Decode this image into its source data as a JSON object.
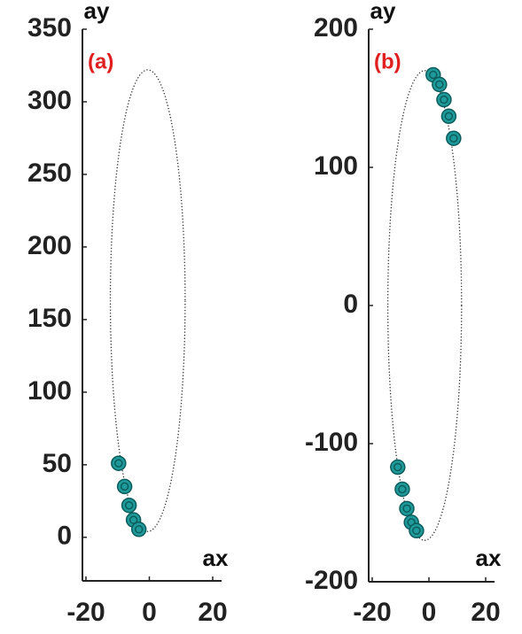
{
  "chart_data": [
    {
      "type": "scatter",
      "title": "(a)",
      "x_label": "ax",
      "y_label": "ay",
      "xlim": [
        -20,
        20
      ],
      "xticks": [
        -20,
        0,
        20
      ],
      "ylim": [
        -30,
        350
      ],
      "yticks": [
        0,
        50,
        100,
        150,
        200,
        250,
        300,
        350
      ],
      "ellipse": {
        "cx": -0.5,
        "cy": 163,
        "rx": 11.8,
        "ry": 159
      },
      "series": [
        {
          "color": "#1f9a9a",
          "x": [
            -9.7,
            -7.8,
            -6.4,
            -5,
            -3.3
          ],
          "values": [
            51,
            35,
            22,
            12,
            5.5
          ]
        }
      ]
    },
    {
      "type": "scatter",
      "title": "(b)",
      "x_label": "ax",
      "y_label": "ay",
      "xlim": [
        -20,
        20
      ],
      "xticks": [
        -20,
        0,
        20
      ],
      "ylim": [
        -200,
        200
      ],
      "yticks": [
        -200,
        -100,
        0,
        100,
        200
      ],
      "ellipse": {
        "cx": -1.5,
        "cy": 0,
        "rx": 13,
        "ry": 170
      },
      "series": [
        {
          "color": "#1f9a9a",
          "x": [
            1.5,
            3.7,
            5.3,
            7,
            8.7,
            -11,
            -9.4,
            -7.8,
            -6.2,
            -4.4
          ],
          "values": [
            167,
            160,
            149,
            137,
            121,
            -117,
            -133,
            -147,
            -157,
            -163
          ]
        }
      ]
    }
  ]
}
